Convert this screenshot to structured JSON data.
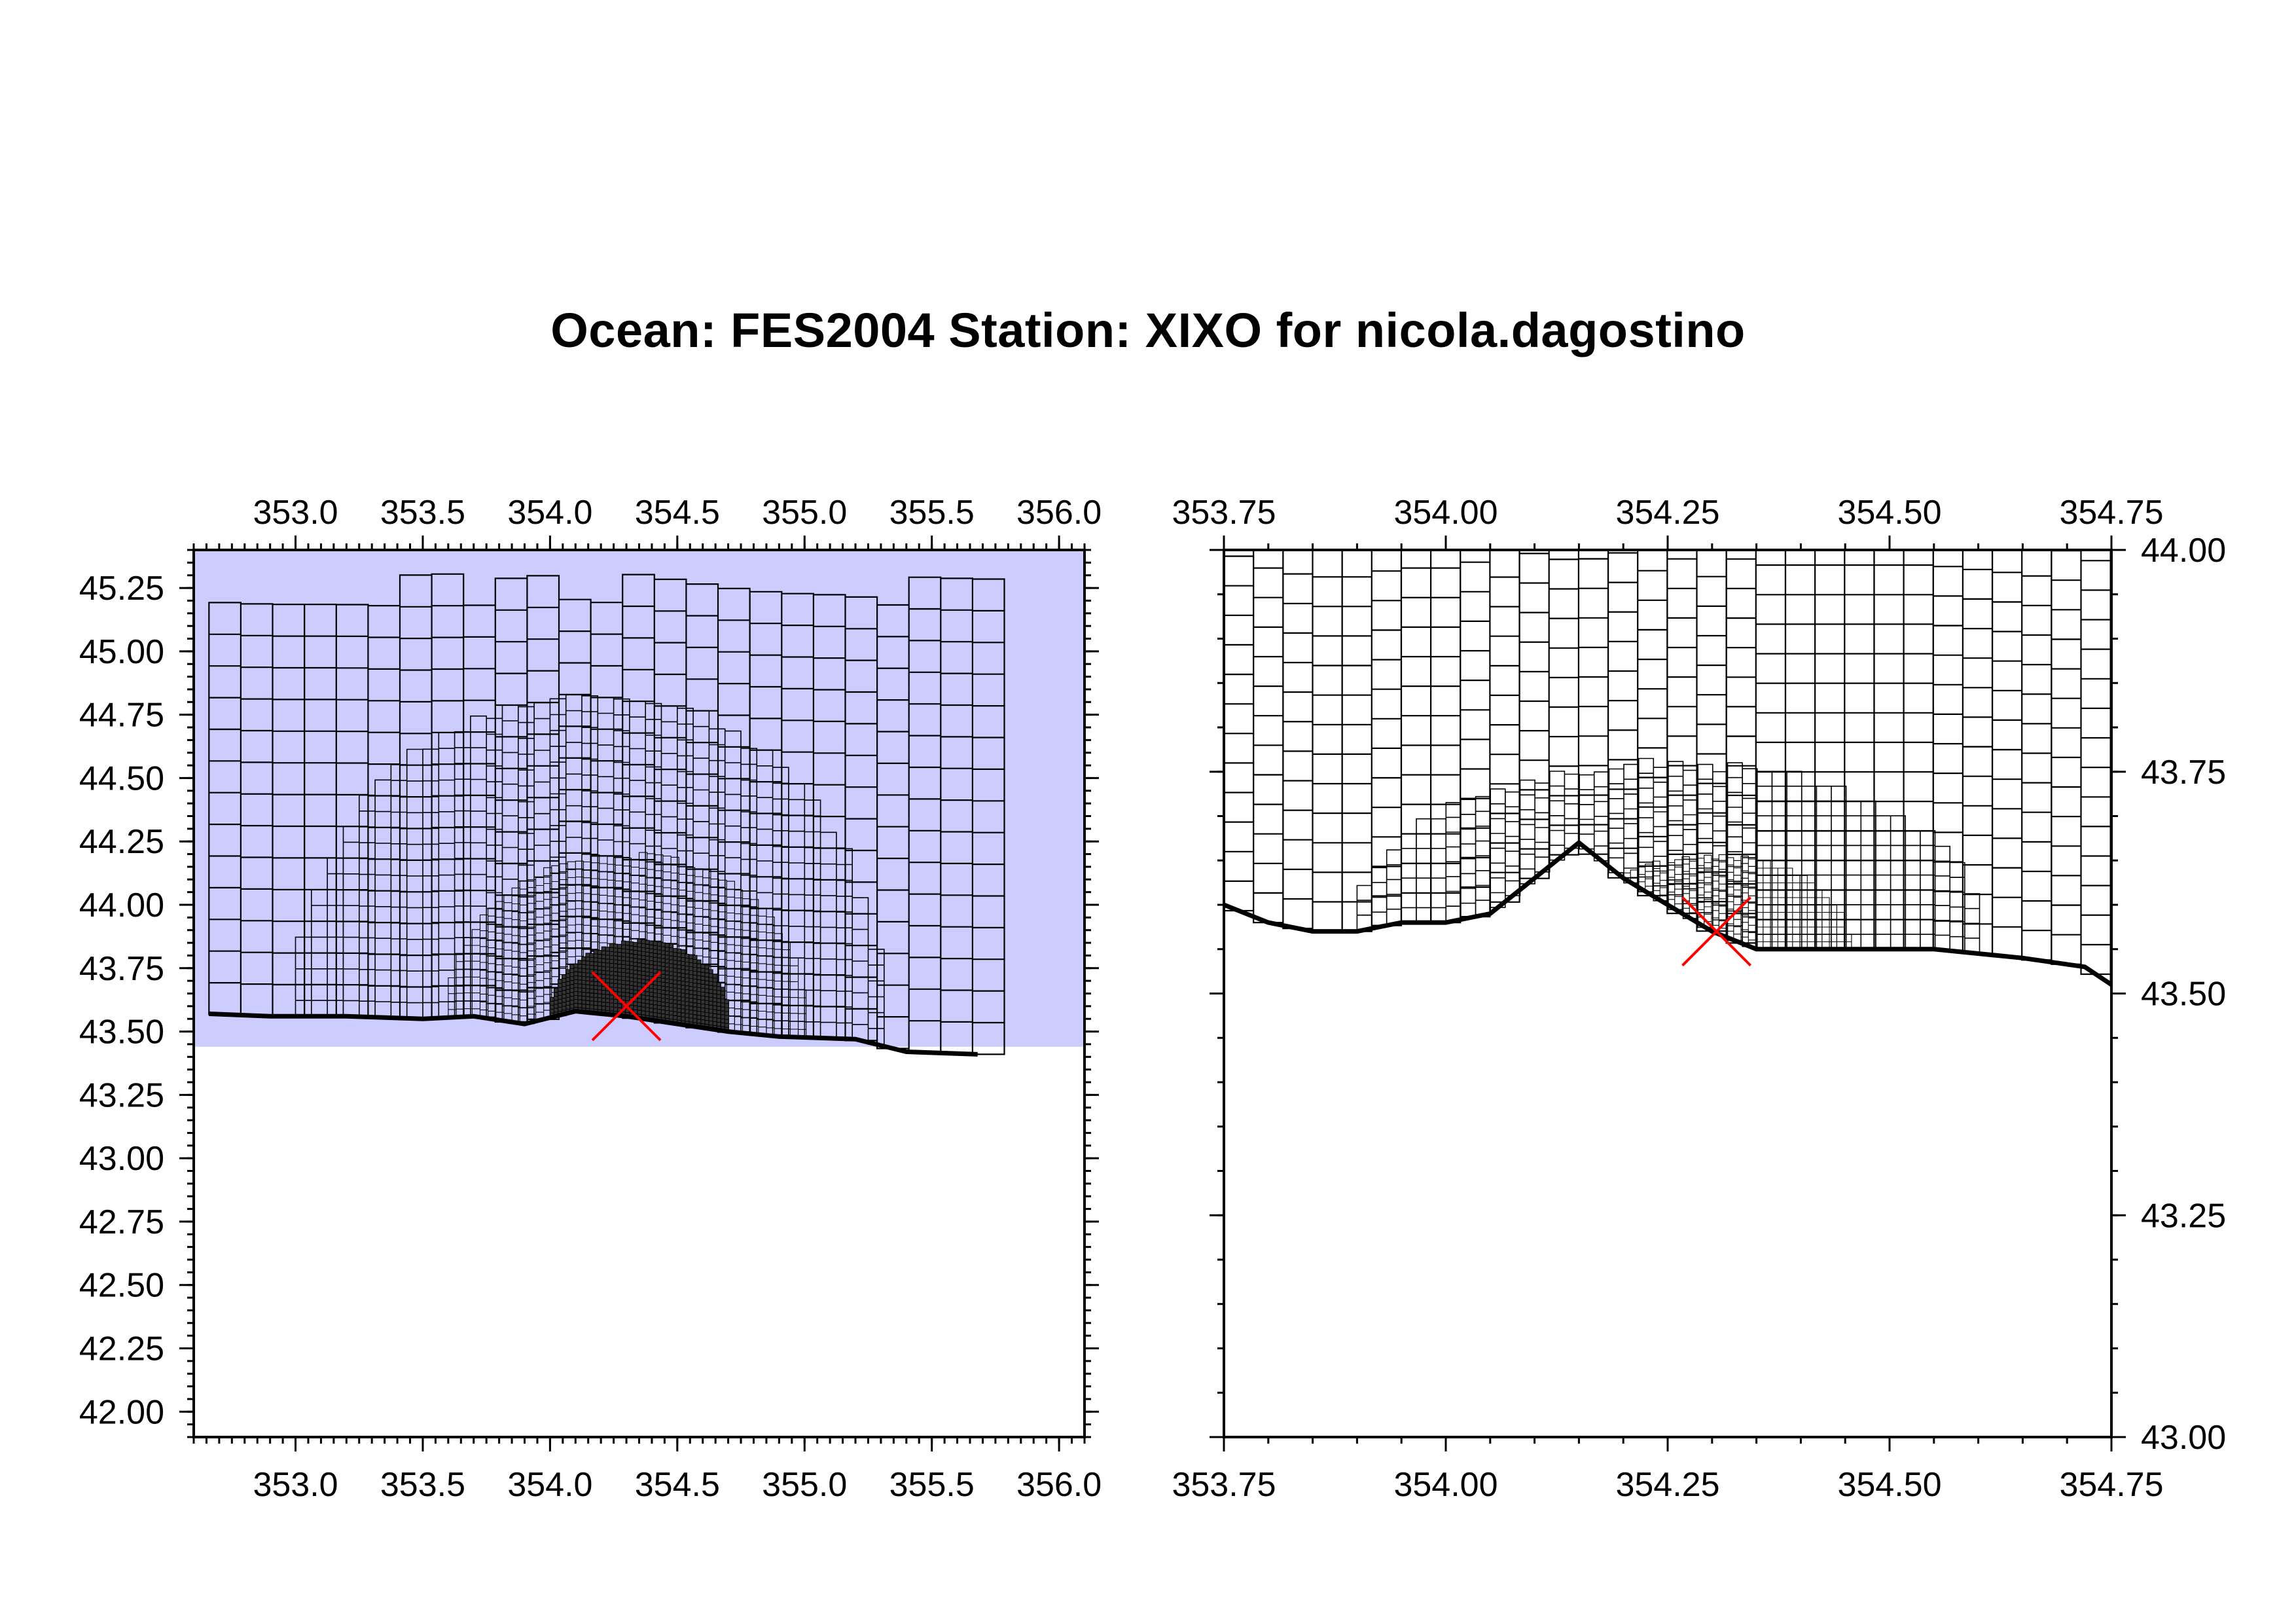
{
  "title": "Ocean: FES2004  Station: XIXO  for nicola.dagostino",
  "colors": {
    "sea_shade": "#ccccff",
    "grid_line": "#000000",
    "dense_cell": "#333333",
    "station_marker": "#ff0000"
  },
  "chart_data": [
    {
      "type": "map",
      "panel": "overview",
      "xlim": [
        352.6,
        356.1
      ],
      "ylim": [
        41.9,
        45.4
      ],
      "x_ticks": [
        "353.0",
        "353.5",
        "354.0",
        "354.5",
        "355.0",
        "355.5",
        "356.0"
      ],
      "x_tick_values": [
        353.0,
        353.5,
        354.0,
        354.5,
        355.0,
        355.5,
        356.0
      ],
      "y_ticks": [
        "42.00",
        "42.25",
        "42.50",
        "42.75",
        "43.00",
        "43.25",
        "43.50",
        "43.75",
        "44.00",
        "44.25",
        "44.50",
        "44.75",
        "45.00",
        "45.25"
      ],
      "y_tick_values": [
        42.0,
        42.25,
        42.5,
        42.75,
        43.0,
        43.25,
        43.5,
        43.75,
        44.0,
        44.25,
        44.5,
        44.75,
        45.0,
        45.25
      ],
      "station": {
        "lon": 354.3,
        "lat": 43.6
      },
      "shaded_region": {
        "lon": [
          352.6,
          356.1
        ],
        "lat": [
          43.44,
          45.4
        ]
      },
      "mesh": [
        {
          "lon": [
            352.66,
            355.68
          ],
          "lat": [
            43.56,
            45.18
          ],
          "cell": 0.125
        },
        {
          "lon": [
            353.0,
            355.3
          ],
          "lat": [
            43.56,
            44.8
          ],
          "cell": 0.0625
        },
        {
          "lon": [
            353.6,
            355.0
          ],
          "lat": [
            43.56,
            44.18
          ],
          "cell": 0.03125
        },
        {
          "lon": [
            354.0,
            354.7
          ],
          "lat": [
            43.56,
            43.85
          ],
          "cell": 0.0156
        }
      ],
      "coastline": [
        [
          352.66,
          43.57
        ],
        [
          352.9,
          43.56
        ],
        [
          353.2,
          43.56
        ],
        [
          353.5,
          43.55
        ],
        [
          353.7,
          43.56
        ],
        [
          353.9,
          43.53
        ],
        [
          354.1,
          43.58
        ],
        [
          354.3,
          43.56
        ],
        [
          354.5,
          43.53
        ],
        [
          354.7,
          43.5
        ],
        [
          354.9,
          43.48
        ],
        [
          355.2,
          43.47
        ],
        [
          355.4,
          43.42
        ],
        [
          355.68,
          43.41
        ]
      ]
    },
    {
      "type": "map",
      "panel": "zoom",
      "xlim": [
        353.75,
        354.75
      ],
      "ylim": [
        43.0,
        44.0
      ],
      "x_ticks": [
        "353.75",
        "354.00",
        "354.25",
        "354.50",
        "354.75"
      ],
      "x_tick_values": [
        353.75,
        354.0,
        354.25,
        354.5,
        354.75
      ],
      "y_ticks": [
        "43.00",
        "43.25",
        "43.50",
        "43.75",
        "44.00"
      ],
      "y_tick_values": [
        43.0,
        43.25,
        43.5,
        43.75,
        44.0
      ],
      "station": {
        "lon": 354.305,
        "lat": 43.57
      },
      "mesh": [
        {
          "lon": [
            353.75,
            354.75
          ],
          "lat": [
            43.58,
            44.0
          ],
          "cell": 0.0333
        },
        {
          "lon": [
            353.9,
            354.6
          ],
          "lat": [
            43.57,
            43.75
          ],
          "cell": 0.0167
        },
        {
          "lon": [
            354.15,
            354.45
          ],
          "lat": [
            43.56,
            43.65
          ],
          "cell": 0.0083
        }
      ],
      "coastline": [
        [
          353.75,
          43.6
        ],
        [
          353.8,
          43.58
        ],
        [
          353.85,
          43.57
        ],
        [
          353.9,
          43.57
        ],
        [
          353.95,
          43.58
        ],
        [
          354.0,
          43.58
        ],
        [
          354.05,
          43.59
        ],
        [
          354.1,
          43.63
        ],
        [
          354.15,
          43.67
        ],
        [
          354.2,
          43.63
        ],
        [
          354.25,
          43.6
        ],
        [
          354.3,
          43.57
        ],
        [
          354.35,
          43.55
        ],
        [
          354.45,
          43.55
        ],
        [
          354.55,
          43.55
        ],
        [
          354.65,
          43.54
        ],
        [
          354.72,
          43.53
        ],
        [
          354.75,
          43.51
        ]
      ]
    }
  ]
}
